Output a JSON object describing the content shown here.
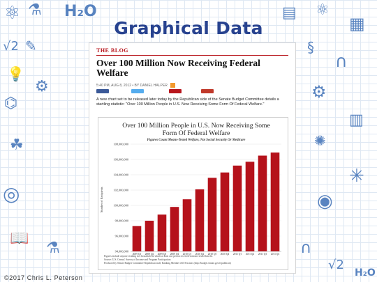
{
  "slide": {
    "title": "Graphical Data",
    "copyright": "©2017 Chris L. Peterson"
  },
  "article": {
    "section": "THE BLOG",
    "headline_line1": "Over 100 Million Now Receiving Federal",
    "headline_line2": "Welfare",
    "byline": "5:40 PM, AUG 8, 2012 • BY DANIEL HALPER",
    "intro": "A new chart set to be released later today by the Republican side of the Senate Budget Committee details a startling statistic: \"Over 100 Million People in U.S. Now Receiving Some Form Of Federal Welfare.\""
  },
  "colors": {
    "bar": "#b5121b",
    "title": "#27428f",
    "accent_red": "#b8161d",
    "share": [
      "#3b5998",
      "#55acee",
      "#b8161d",
      "#c0392b"
    ]
  },
  "icons": [
    "atom-icon",
    "flask-icon",
    "h2o-formula-icon",
    "notebook-icon",
    "sqrt-formula-icon",
    "magnet-icon",
    "lightbulb-icon",
    "pencil-icon",
    "molecule-icon",
    "ruler-icon",
    "globe-icon",
    "dna-icon",
    "plant-icon",
    "gear-icon",
    "book-icon",
    "beaker-icon"
  ],
  "chart_data": {
    "type": "bar",
    "title_line1": "Over 100 Million People in U.S. Now Receiving Some",
    "title_line2": "Form Of Federal Welfare",
    "subtitle": "Figures Count Means-Tested Welfare, Not Social Security Or Medicare",
    "ylabel": "Number of Recipients",
    "categories": [
      "2009 Q1",
      "2009 Q2",
      "2009 Q3",
      "2009 Q4",
      "2010 Q1",
      "2010 Q2",
      "2010 Q3",
      "2010 Q4",
      "2011 Q1",
      "2011 Q2",
      "2011 Q3",
      "2011 Q4"
    ],
    "values": [
      97300000,
      98000000,
      98800000,
      99800000,
      100800000,
      102100000,
      103600000,
      104300000,
      105200000,
      105700000,
      106500000,
      106900000
    ],
    "yticks": [
      "94,000,000",
      "96,000,000",
      "98,000,000",
      "100,000,000",
      "102,000,000",
      "104,000,000",
      "106,000,000",
      "108,000,000"
    ],
    "ytick_values": [
      94000000,
      96000000,
      98000000,
      100000000,
      102000000,
      104000000,
      106000000,
      108000000
    ],
    "ylim": [
      94000000,
      108000000
    ],
    "footnote_1": "Figures include anyone residing in a household in which at least one person received a means-tested benefit.",
    "footnote_2": "Source: U.S. Census' Survey of Income and Program Participation",
    "footnote_3": "Produced by Senate Budget Committee Republican staff, Ranking Member Jeff Sessions (http://budget.senate.gov/republican)"
  }
}
